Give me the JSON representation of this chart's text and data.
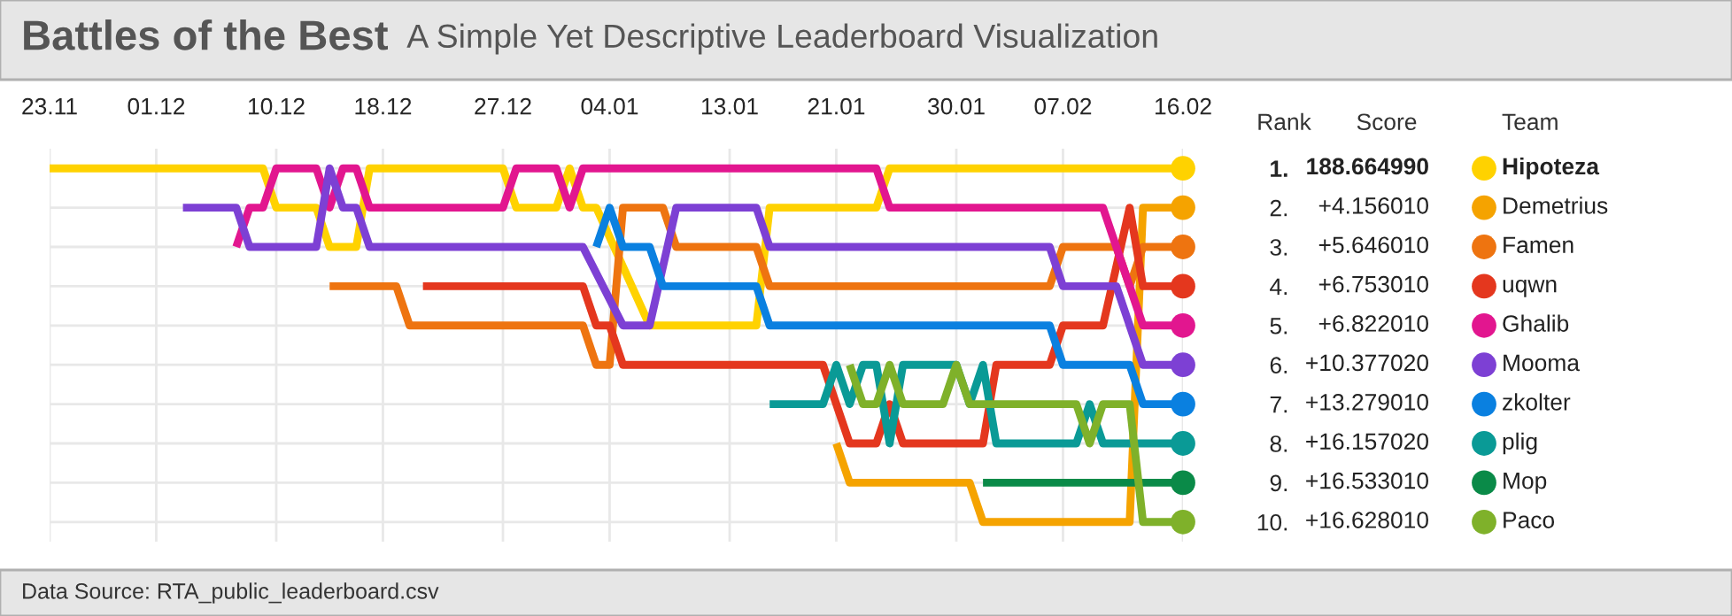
{
  "chart_data": {
    "type": "line",
    "title": "Battles of the Best",
    "subtitle": "A Simple Yet Descriptive Leaderboard Visualization",
    "ylabel": "Rank",
    "legend_title": "Team",
    "legend": "right",
    "grid": true,
    "line_style": "solid",
    "xlim": [
      "2010-11-23",
      "2011-02-16"
    ],
    "xticks": [
      {
        "value": "2010-11-23",
        "label": "23.11"
      },
      {
        "value": "2010-12-01",
        "label": "01.12"
      },
      {
        "value": "2010-12-10",
        "label": "10.12"
      },
      {
        "value": "2010-12-18",
        "label": "18.12"
      },
      {
        "value": "2010-12-27",
        "label": "27.12"
      },
      {
        "value": "2011-01-04",
        "label": "04.01"
      },
      {
        "value": "2011-01-13",
        "label": "13.01"
      },
      {
        "value": "2011-01-21",
        "label": "21.01"
      },
      {
        "value": "2011-01-30",
        "label": "30.01"
      },
      {
        "value": "2011-02-07",
        "label": "07.02"
      },
      {
        "value": "2011-02-16",
        "label": "16.02"
      }
    ],
    "ylim": [
      10.5,
      0.5
    ],
    "yticks": [
      {
        "value": 1,
        "label": "1."
      },
      {
        "value": 2,
        "label": "2."
      },
      {
        "value": 3,
        "label": "3."
      },
      {
        "value": 4,
        "label": "4."
      },
      {
        "value": 5,
        "label": "5."
      },
      {
        "value": 6,
        "label": "6."
      },
      {
        "value": 7,
        "label": "7."
      },
      {
        "value": 8,
        "label": "8."
      },
      {
        "value": 9,
        "label": "9."
      },
      {
        "value": 10,
        "label": "10."
      }
    ],
    "annotations": [
      "Score",
      "Data Source: RTA_public_leaderboard.csv",
      "188.664990",
      "+4.156010",
      "+5.646010",
      "+6.753010",
      "+6.822010",
      "+10.377020",
      "+13.279010",
      "+16.157020",
      "+16.533010",
      "+16.628010"
    ],
    "series": [
      {
        "name": "Hipoteza",
        "color": "#ffd200",
        "x": [
          "2010-11-23",
          "2010-12-09",
          "2010-12-10",
          "2010-12-13",
          "2010-12-14",
          "2010-12-16",
          "2010-12-17",
          "2010-12-27",
          "2010-12-28",
          "2010-12-31",
          "2011-01-01",
          "2011-01-02",
          "2011-01-03",
          "2011-01-07",
          "2011-01-15",
          "2011-01-16",
          "2011-01-24",
          "2011-01-25",
          "2011-02-16"
        ],
        "values": [
          1,
          1,
          2,
          2,
          3,
          3,
          1,
          1,
          2,
          2,
          1,
          2,
          2,
          5,
          5,
          2,
          2,
          1,
          1
        ]
      },
      {
        "name": "Demetrius",
        "color": "#f5a300",
        "x": [
          "2011-01-21",
          "2011-01-22",
          "2011-01-31",
          "2011-02-01",
          "2011-02-12",
          "2011-02-13",
          "2011-02-16"
        ],
        "values": [
          8,
          9,
          9,
          10,
          10,
          2,
          2
        ]
      },
      {
        "name": "Famen",
        "color": "#ee7410",
        "x": [
          "2010-12-14",
          "2010-12-19",
          "2010-12-20",
          "2011-01-02",
          "2011-01-03",
          "2011-01-04",
          "2011-01-05",
          "2011-01-08",
          "2011-01-09",
          "2011-01-15",
          "2011-01-16",
          "2011-02-06",
          "2011-02-07",
          "2011-02-11",
          "2011-02-12",
          "2011-02-13",
          "2011-02-16"
        ],
        "values": [
          4,
          4,
          5,
          5,
          6,
          6,
          2,
          2,
          3,
          3,
          4,
          4,
          3,
          3,
          4,
          3,
          3
        ]
      },
      {
        "name": "uqwn",
        "color": "#e4371e",
        "x": [
          "2010-12-21",
          "2011-01-02",
          "2011-01-03",
          "2011-01-04",
          "2011-01-05",
          "2011-01-20",
          "2011-01-22",
          "2011-01-24",
          "2011-01-25",
          "2011-01-26",
          "2011-02-01",
          "2011-02-02",
          "2011-02-06",
          "2011-02-07",
          "2011-02-10",
          "2011-02-12",
          "2011-02-13",
          "2011-02-16"
        ],
        "values": [
          4,
          4,
          5,
          5,
          6,
          6,
          8,
          8,
          7,
          8,
          8,
          6,
          6,
          5,
          5,
          2,
          4,
          4
        ]
      },
      {
        "name": "Ghalib",
        "color": "#e2168f",
        "x": [
          "2010-12-07",
          "2010-12-08",
          "2010-12-09",
          "2010-12-10",
          "2010-12-13",
          "2010-12-14",
          "2010-12-15",
          "2010-12-16",
          "2010-12-17",
          "2010-12-27",
          "2010-12-28",
          "2010-12-31",
          "2011-01-01",
          "2011-01-02",
          "2011-01-24",
          "2011-01-25",
          "2011-02-10",
          "2011-02-13",
          "2011-02-16"
        ],
        "values": [
          3,
          2,
          2,
          1,
          1,
          2,
          1,
          1,
          2,
          2,
          1,
          1,
          2,
          1,
          1,
          2,
          2,
          5,
          5
        ]
      },
      {
        "name": "Mooma",
        "color": "#7d40d4",
        "x": [
          "2010-12-03",
          "2010-12-07",
          "2010-12-08",
          "2010-12-13",
          "2010-12-14",
          "2010-12-15",
          "2010-12-16",
          "2010-12-17",
          "2011-01-02",
          "2011-01-05",
          "2011-01-07",
          "2011-01-09",
          "2011-01-15",
          "2011-01-16",
          "2011-02-06",
          "2011-02-07",
          "2011-02-11",
          "2011-02-13",
          "2011-02-16"
        ],
        "values": [
          2,
          2,
          3,
          3,
          1,
          2,
          2,
          3,
          3,
          5,
          5,
          2,
          2,
          3,
          3,
          4,
          4,
          6,
          6
        ]
      },
      {
        "name": "zkolter",
        "color": "#0a80e0",
        "x": [
          "2011-01-03",
          "2011-01-04",
          "2011-01-05",
          "2011-01-07",
          "2011-01-08",
          "2011-01-15",
          "2011-01-16",
          "2011-02-06",
          "2011-02-07",
          "2011-02-12",
          "2011-02-13",
          "2011-02-16"
        ],
        "values": [
          3,
          2,
          3,
          3,
          4,
          4,
          5,
          5,
          6,
          6,
          7,
          7
        ]
      },
      {
        "name": "plig",
        "color": "#0a9a96",
        "x": [
          "2011-01-16",
          "2011-01-20",
          "2011-01-21",
          "2011-01-22",
          "2011-01-23",
          "2011-01-24",
          "2011-01-25",
          "2011-01-26",
          "2011-01-30",
          "2011-01-31",
          "2011-02-01",
          "2011-02-02",
          "2011-02-08",
          "2011-02-09",
          "2011-02-10",
          "2011-02-16"
        ],
        "values": [
          7,
          7,
          6,
          7,
          6,
          6,
          8,
          6,
          6,
          7,
          6,
          8,
          8,
          7,
          8,
          8
        ]
      },
      {
        "name": "Mop",
        "color": "#0a8a48",
        "x": [
          "2011-02-01",
          "2011-02-16"
        ],
        "values": [
          9,
          9
        ]
      },
      {
        "name": "Paco",
        "color": "#7fb12a",
        "x": [
          "2011-01-22",
          "2011-01-23",
          "2011-01-24",
          "2011-01-25",
          "2011-01-26",
          "2011-01-29",
          "2011-01-30",
          "2011-01-31",
          "2011-02-08",
          "2011-02-09",
          "2011-02-10",
          "2011-02-12",
          "2011-02-13",
          "2011-02-16"
        ],
        "values": [
          6,
          7,
          7,
          6,
          7,
          7,
          6,
          7,
          7,
          8,
          7,
          7,
          10,
          10
        ]
      }
    ]
  }
}
